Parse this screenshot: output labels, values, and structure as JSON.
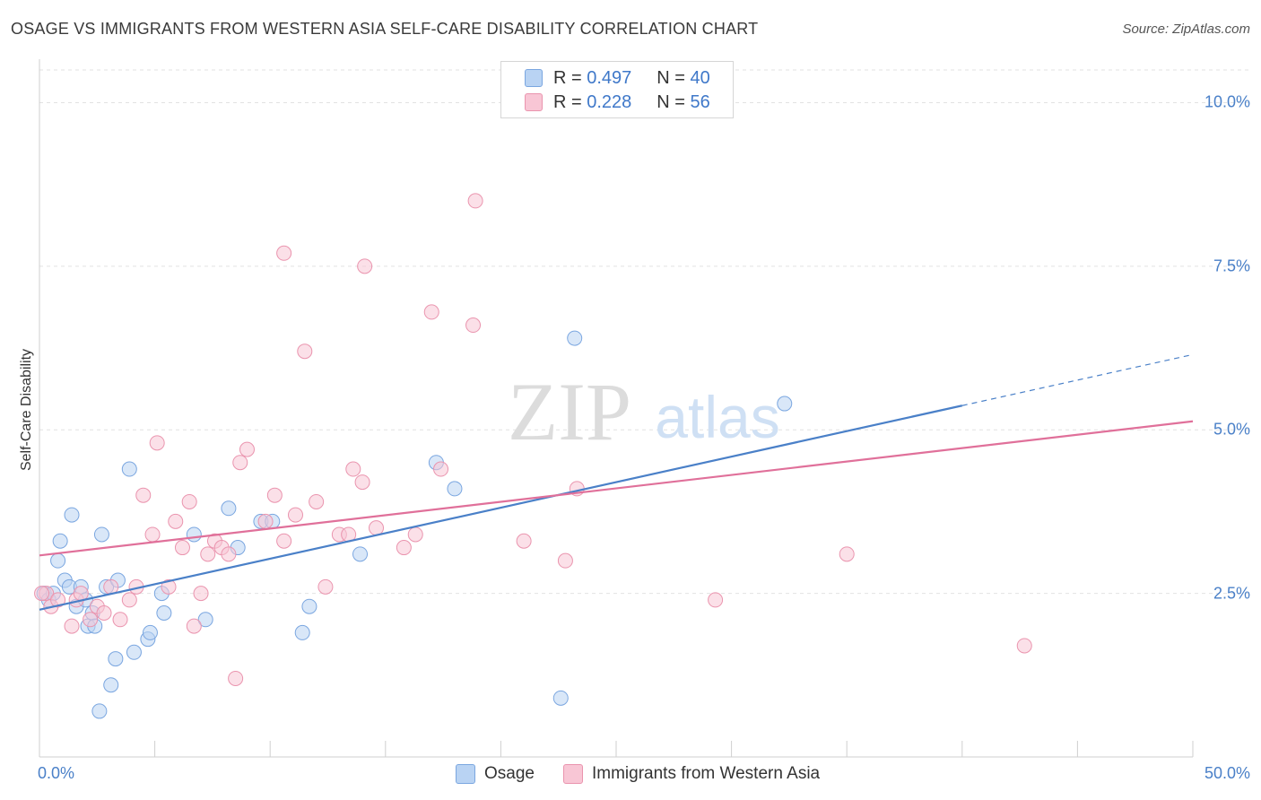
{
  "title": "OSAGE VS IMMIGRANTS FROM WESTERN ASIA SELF-CARE DISABILITY CORRELATION CHART",
  "source": "Source: ZipAtlas.com",
  "watermark": {
    "zip": "ZIP",
    "atlas": "atlas"
  },
  "legend": {
    "r_label": "R =",
    "n_label": "N =",
    "series": [
      {
        "name": "Osage",
        "r": "0.497",
        "n": "40",
        "fill": "#b9d3f3",
        "stroke": "#7aa6e0"
      },
      {
        "name": "Immigrants from Western Asia",
        "r": "0.228",
        "n": "56",
        "fill": "#f8c6d5",
        "stroke": "#ea94ae"
      }
    ]
  },
  "chart_data": {
    "type": "scatter",
    "title": "OSAGE VS IMMIGRANTS FROM WESTERN ASIA SELF-CARE DISABILITY CORRELATION CHART",
    "xlabel": "",
    "ylabel": "Self-Care Disability",
    "xlim": [
      0,
      50
    ],
    "ylim": [
      0,
      10.5
    ],
    "x_tick_labels": [
      "0.0%",
      "50.0%"
    ],
    "y_ticks": [
      2.5,
      5.0,
      7.5,
      10.0
    ],
    "y_tick_labels": [
      "2.5%",
      "5.0%",
      "7.5%",
      "10.0%"
    ],
    "grid": true,
    "series": [
      {
        "name": "Osage",
        "color": "#4a80c8",
        "points": [
          [
            0.2,
            2.5
          ],
          [
            0.4,
            2.4
          ],
          [
            0.6,
            2.5
          ],
          [
            0.8,
            3.0
          ],
          [
            0.9,
            3.3
          ],
          [
            1.1,
            2.7
          ],
          [
            1.3,
            2.6
          ],
          [
            1.4,
            3.7
          ],
          [
            1.6,
            2.3
          ],
          [
            1.8,
            2.6
          ],
          [
            2.0,
            2.4
          ],
          [
            2.1,
            2.0
          ],
          [
            2.3,
            2.2
          ],
          [
            2.4,
            2.0
          ],
          [
            2.6,
            0.7
          ],
          [
            2.7,
            3.4
          ],
          [
            2.9,
            2.6
          ],
          [
            3.1,
            1.1
          ],
          [
            3.3,
            1.5
          ],
          [
            3.4,
            2.7
          ],
          [
            3.9,
            4.4
          ],
          [
            4.1,
            1.6
          ],
          [
            4.7,
            1.8
          ],
          [
            4.8,
            1.9
          ],
          [
            5.3,
            2.5
          ],
          [
            5.4,
            2.2
          ],
          [
            6.7,
            3.4
          ],
          [
            7.2,
            2.1
          ],
          [
            8.2,
            3.8
          ],
          [
            8.6,
            3.2
          ],
          [
            9.6,
            3.6
          ],
          [
            10.1,
            3.6
          ],
          [
            11.4,
            1.9
          ],
          [
            11.7,
            2.3
          ],
          [
            13.9,
            3.1
          ],
          [
            17.2,
            4.5
          ],
          [
            18.0,
            4.1
          ],
          [
            22.6,
            0.9
          ],
          [
            23.2,
            6.4
          ],
          [
            32.3,
            5.4
          ]
        ],
        "trend": {
          "x": [
            0,
            40
          ],
          "y": [
            2.25,
            5.37
          ]
        },
        "trend_dashed": {
          "x": [
            40,
            50
          ],
          "y": [
            5.37,
            6.15
          ]
        }
      },
      {
        "name": "Immigrants from Western Asia",
        "color": "#e0709a",
        "points": [
          [
            0.3,
            2.5
          ],
          [
            0.5,
            2.3
          ],
          [
            0.8,
            2.4
          ],
          [
            1.4,
            2.0
          ],
          [
            1.6,
            2.4
          ],
          [
            1.8,
            2.5
          ],
          [
            2.2,
            2.1
          ],
          [
            2.5,
            2.3
          ],
          [
            2.8,
            2.2
          ],
          [
            3.1,
            2.6
          ],
          [
            3.5,
            2.1
          ],
          [
            3.9,
            2.4
          ],
          [
            4.2,
            2.6
          ],
          [
            4.5,
            4.0
          ],
          [
            4.9,
            3.4
          ],
          [
            5.1,
            4.8
          ],
          [
            5.6,
            2.6
          ],
          [
            5.9,
            3.6
          ],
          [
            6.2,
            3.2
          ],
          [
            6.5,
            3.9
          ],
          [
            6.7,
            2.0
          ],
          [
            7.0,
            2.5
          ],
          [
            7.3,
            3.1
          ],
          [
            7.6,
            3.3
          ],
          [
            7.9,
            3.2
          ],
          [
            8.2,
            3.1
          ],
          [
            8.5,
            1.2
          ],
          [
            8.7,
            4.5
          ],
          [
            9.0,
            4.7
          ],
          [
            9.8,
            3.6
          ],
          [
            10.2,
            4.0
          ],
          [
            10.6,
            3.3
          ],
          [
            11.1,
            3.7
          ],
          [
            11.5,
            6.2
          ],
          [
            12.0,
            3.9
          ],
          [
            12.4,
            2.6
          ],
          [
            13.0,
            3.4
          ],
          [
            13.4,
            3.4
          ],
          [
            13.6,
            4.4
          ],
          [
            14.0,
            4.2
          ],
          [
            14.1,
            7.5
          ],
          [
            14.6,
            3.5
          ],
          [
            15.8,
            3.2
          ],
          [
            16.3,
            3.4
          ],
          [
            17.0,
            6.8
          ],
          [
            17.4,
            4.4
          ],
          [
            18.8,
            6.6
          ],
          [
            18.9,
            8.5
          ],
          [
            10.6,
            7.7
          ],
          [
            21.0,
            3.3
          ],
          [
            22.8,
            3.0
          ],
          [
            23.3,
            4.1
          ],
          [
            29.3,
            2.4
          ],
          [
            35.0,
            3.1
          ],
          [
            42.7,
            1.7
          ],
          [
            0.1,
            2.5
          ]
        ],
        "trend": {
          "x": [
            0,
            50
          ],
          "y": [
            3.08,
            5.13
          ]
        }
      }
    ]
  }
}
